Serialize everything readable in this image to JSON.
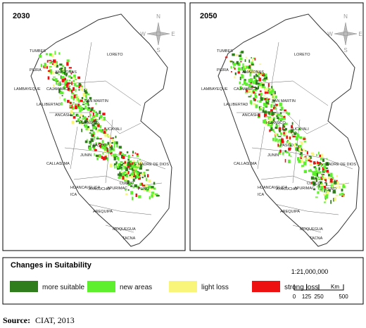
{
  "panels": [
    {
      "title": "2030"
    },
    {
      "title": "2050"
    }
  ],
  "compass": {
    "n": "N",
    "e": "E",
    "s": "S",
    "w": "W"
  },
  "regions": [
    "TUMBES",
    "PIURA",
    "LORETO",
    "AMAZONAS",
    "LAMBAYEQUE",
    "CAJAMARCA",
    "LA LIBERTAD",
    "SAN MARTIN",
    "ANCASH",
    "HUANUCO",
    "UCAYALI",
    "PASCO",
    "JUNIN",
    "CALLAO",
    "LIMA",
    "MADRE DE DIOS",
    "HUANCAVELICA",
    "ICA",
    "AYACUCHO",
    "APURIMAC",
    "CUSCO",
    "PUNO",
    "AREQUIPA",
    "MOQUEGUA",
    "TACNA"
  ],
  "legend": {
    "title": "Changes in Suitability",
    "items": [
      {
        "label": "more suitable",
        "color": "#2f7d1c"
      },
      {
        "label": "new areas",
        "color": "#5ef02e"
      },
      {
        "label": "light loss",
        "color": "#f8f57a"
      },
      {
        "label": "strong loss",
        "color": "#ee1111"
      }
    ]
  },
  "scale": {
    "ratio": "1:21,000,000",
    "ticks": [
      0,
      125,
      250,
      500
    ],
    "unit": "Km"
  },
  "source": {
    "label": "Source:",
    "text": "CIAT, 2013"
  }
}
